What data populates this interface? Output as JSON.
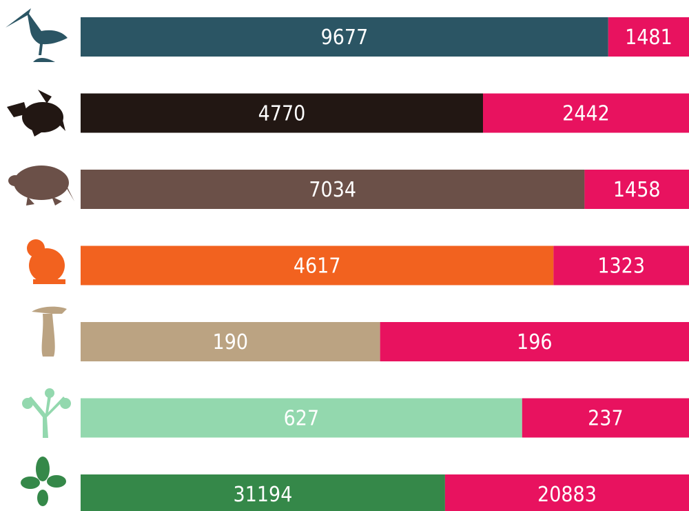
{
  "chart_data": {
    "type": "stacked-bar-100",
    "categories": [
      null,
      null,
      null,
      null,
      null,
      null,
      null
    ],
    "series": [
      {
        "colors": [
          "#2b5564",
          "#221713",
          "#6b5048",
          "#f2621f",
          "#bba382",
          "#93d8ae",
          "#358849"
        ],
        "values": [
          9677,
          4770,
          7034,
          4617,
          190,
          627,
          31194
        ]
      },
      {
        "color": "#e8125f",
        "values": [
          1481,
          2442,
          1458,
          1323,
          196,
          237,
          20883
        ]
      }
    ]
  }
}
